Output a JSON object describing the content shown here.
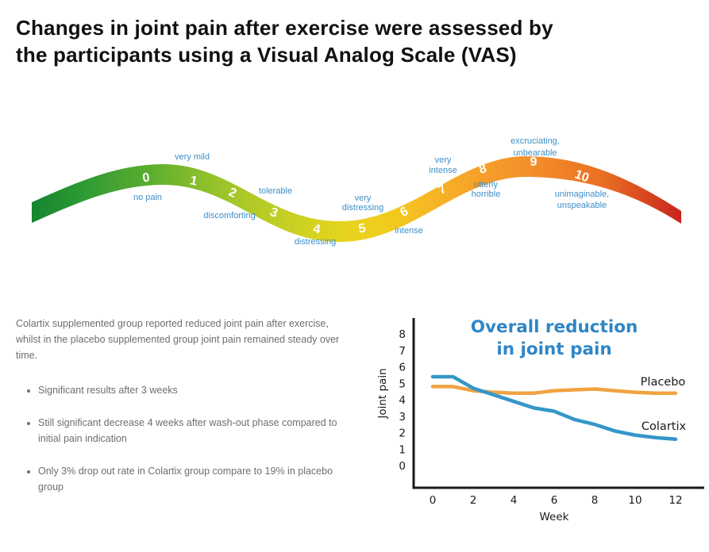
{
  "page": {
    "title_line1": "Changes in joint pain after exercise were assessed by",
    "title_line2": "the participants using a Visual Analog Scale (VAS)"
  },
  "vas_scale": {
    "numbers": [
      "0",
      "1",
      "2",
      "3",
      "4",
      "5",
      "6",
      "7",
      "8",
      "9",
      "10"
    ],
    "labels": {
      "no_pain": "no pain",
      "very_mild": "very mild",
      "tolerable": "tolerable",
      "discomforting": "discomforting",
      "distressing": "distressing",
      "very_distressing_1": "very",
      "very_distressing_2": "distressing",
      "intense": "intense",
      "very_intense_1": "very",
      "very_intense_2": "intense",
      "utterly_horrible_1": "utterly",
      "utterly_horrible_2": "horrible",
      "excruciating_1": "excruciating,",
      "excruciating_2": "unbearable",
      "unimaginable_1": "unimaginable,",
      "unimaginable_2": "unspeakable"
    },
    "gradient": [
      {
        "offset": 0.0,
        "color": "#15852f"
      },
      {
        "offset": 0.08,
        "color": "#2f9a33"
      },
      {
        "offset": 0.18,
        "color": "#5bad2f"
      },
      {
        "offset": 0.26,
        "color": "#8abf2b"
      },
      {
        "offset": 0.33,
        "color": "#adc928"
      },
      {
        "offset": 0.41,
        "color": "#cdd122"
      },
      {
        "offset": 0.48,
        "color": "#e6d41d"
      },
      {
        "offset": 0.55,
        "color": "#f2cb1d"
      },
      {
        "offset": 0.62,
        "color": "#f6b525"
      },
      {
        "offset": 0.69,
        "color": "#f6a02a"
      },
      {
        "offset": 0.76,
        "color": "#f3912a"
      },
      {
        "offset": 0.82,
        "color": "#f08127"
      },
      {
        "offset": 0.88,
        "color": "#e96f23"
      },
      {
        "offset": 0.94,
        "color": "#d94a20"
      },
      {
        "offset": 1.0,
        "color": "#c8231d"
      }
    ]
  },
  "summary": {
    "paragraph": "Colartix supplemented group reported reduced joint pain after exercise, whilst in the placebo supplemented group joint pain remained steady over time.",
    "bullets": [
      "Significant results after 3 weeks",
      "Still significant decrease 4 weeks after wash-out phase compared to initial pain indication",
      "Only 3% drop out rate in Colartix group compare to 19% in placebo group"
    ]
  },
  "chart_display": {
    "title_line1": "Overall reduction",
    "title_line2": "in joint pain"
  },
  "chart_data": {
    "type": "line",
    "title": "Overall reduction in joint pain",
    "xlabel": "Week",
    "ylabel": "Joint pain",
    "x": [
      0,
      1,
      2,
      3,
      4,
      5,
      6,
      7,
      8,
      9,
      10,
      11,
      12
    ],
    "x_ticks": [
      0,
      2,
      4,
      6,
      8,
      10,
      12
    ],
    "y_ticks": [
      0,
      1,
      2,
      3,
      4,
      5,
      6,
      7,
      8
    ],
    "ylim": [
      0,
      8
    ],
    "xlim": [
      0,
      12
    ],
    "grid": false,
    "legend_position": "inline-right",
    "series": [
      {
        "name": "Placebo",
        "color": "#f0a341",
        "values": [
          4.8,
          4.8,
          4.55,
          4.45,
          4.4,
          4.4,
          4.55,
          4.6,
          4.65,
          4.55,
          4.45,
          4.4,
          4.4
        ]
      },
      {
        "name": "Colartix",
        "color": "#3596c8",
        "values": [
          5.4,
          5.4,
          4.7,
          4.3,
          3.9,
          3.5,
          3.3,
          2.8,
          2.5,
          2.1,
          1.85,
          1.7,
          1.6
        ]
      }
    ]
  },
  "colors": {
    "title_black": "#111111",
    "vas_label_blue": "#3e8fc8",
    "chart_title_blue": "#2e86c5",
    "text_gray": "#6e6e6e"
  }
}
